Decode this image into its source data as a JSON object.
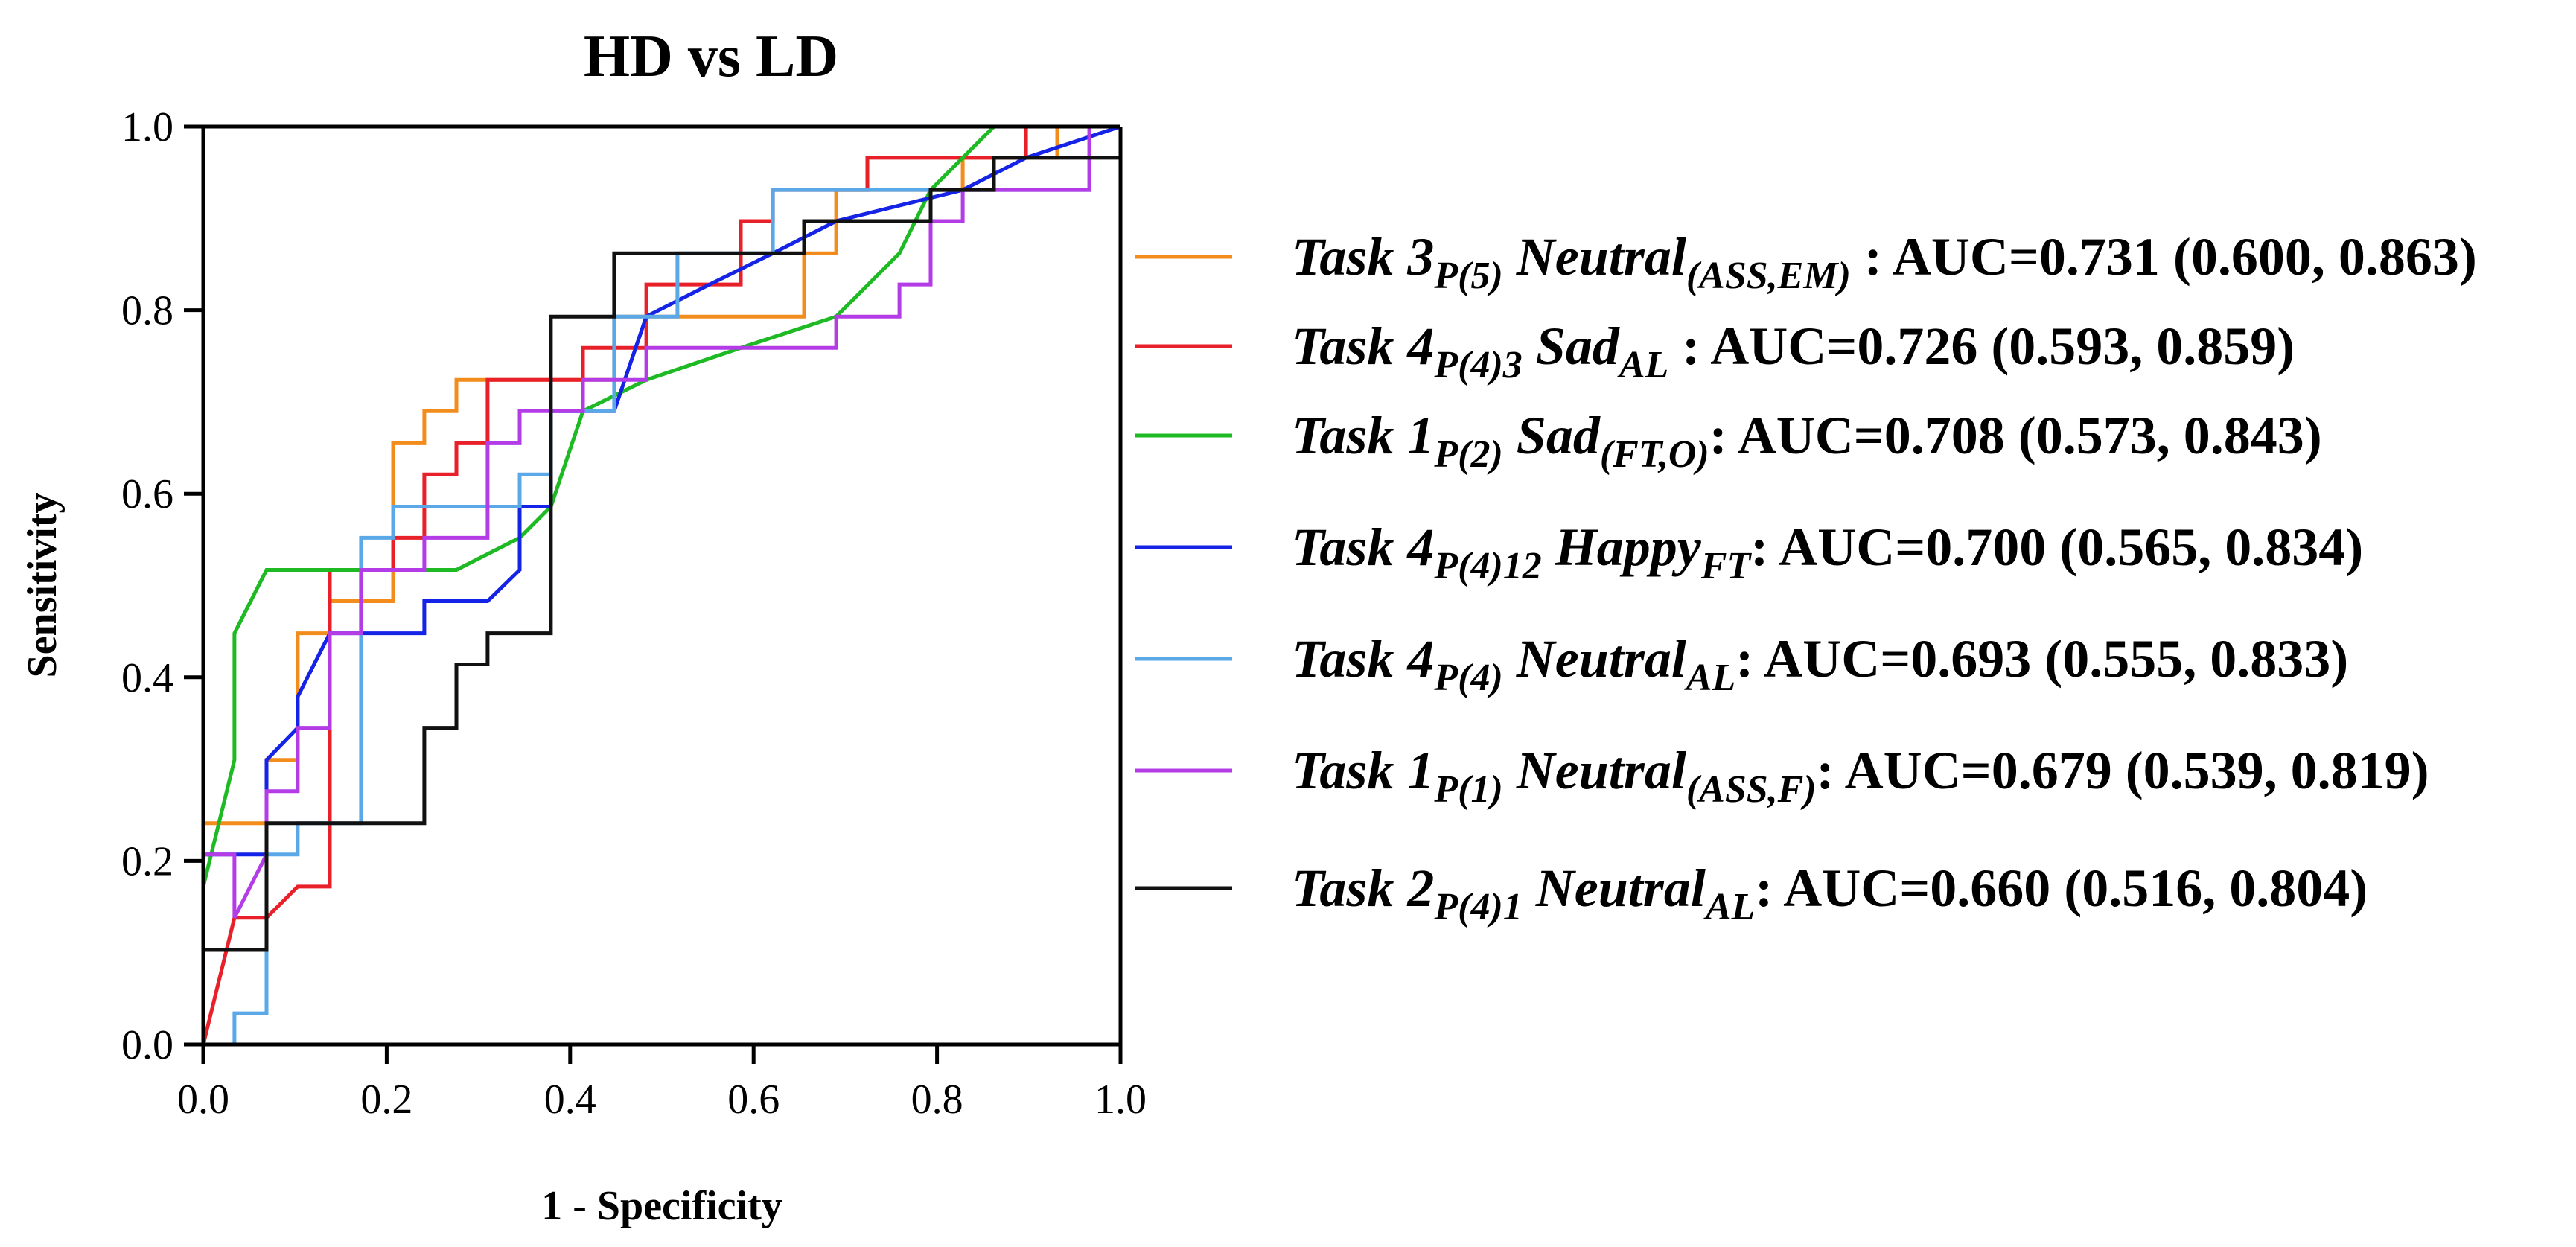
{
  "chart_data": {
    "type": "line",
    "title": "HD vs LD",
    "xlabel": "1 - Specificity",
    "ylabel": "Sensitivity",
    "xlim": [
      0,
      1
    ],
    "ylim": [
      0,
      1
    ],
    "xticks": [
      "0.0",
      "0.2",
      "0.4",
      "0.6",
      "0.8",
      "1.0"
    ],
    "yticks": [
      "0.0",
      "0.2",
      "0.4",
      "0.6",
      "0.8",
      "1.0"
    ],
    "legend_position": "right",
    "series": [
      {
        "name": "Task 3 P(5) Neutral(ASS,EM) : AUC=0.731 (0.600, 0.863)",
        "legend": {
          "task": "Task 3",
          "sub1": "P(5)",
          "cond": "Neutral",
          "sub2": "(ASS,EM)",
          "auc": " : AUC=0.731 (0.600, 0.863)"
        },
        "color": "#F28C1C",
        "points": [
          [
            0,
            0.241
          ],
          [
            0.069,
            0.241
          ],
          [
            0.069,
            0.31
          ],
          [
            0.103,
            0.31
          ],
          [
            0.103,
            0.448
          ],
          [
            0.138,
            0.448
          ],
          [
            0.138,
            0.483
          ],
          [
            0.207,
            0.483
          ],
          [
            0.207,
            0.655
          ],
          [
            0.241,
            0.655
          ],
          [
            0.241,
            0.69
          ],
          [
            0.276,
            0.69
          ],
          [
            0.276,
            0.724
          ],
          [
            0.31,
            0.724
          ],
          [
            0.448,
            0.724
          ],
          [
            0.448,
            0.793
          ],
          [
            0.655,
            0.793
          ],
          [
            0.655,
            0.862
          ],
          [
            0.69,
            0.862
          ],
          [
            0.69,
            0.931
          ],
          [
            0.793,
            0.931
          ],
          [
            0.828,
            0.931
          ],
          [
            0.828,
            0.966
          ],
          [
            0.931,
            0.966
          ],
          [
            0.931,
            1.0
          ],
          [
            1.0,
            1.0
          ]
        ]
      },
      {
        "name": "Task 4 P(4)3 Sad AL : AUC=0.726 (0.593, 0.859)",
        "legend": {
          "task": "Task 4",
          "sub1": "P(4)3",
          "cond": "Sad",
          "sub2": "AL",
          "auc": " : AUC=0.726 (0.593, 0.859)"
        },
        "color": "#E8202A",
        "points": [
          [
            0,
            0
          ],
          [
            0.034,
            0.138
          ],
          [
            0.069,
            0.138
          ],
          [
            0.103,
            0.172
          ],
          [
            0.138,
            0.172
          ],
          [
            0.138,
            0.517
          ],
          [
            0.207,
            0.517
          ],
          [
            0.207,
            0.552
          ],
          [
            0.241,
            0.552
          ],
          [
            0.241,
            0.621
          ],
          [
            0.276,
            0.621
          ],
          [
            0.276,
            0.655
          ],
          [
            0.31,
            0.655
          ],
          [
            0.31,
            0.724
          ],
          [
            0.414,
            0.724
          ],
          [
            0.414,
            0.759
          ],
          [
            0.483,
            0.759
          ],
          [
            0.483,
            0.828
          ],
          [
            0.586,
            0.828
          ],
          [
            0.586,
            0.897
          ],
          [
            0.621,
            0.897
          ],
          [
            0.621,
            0.931
          ],
          [
            0.724,
            0.931
          ],
          [
            0.724,
            0.966
          ],
          [
            0.897,
            0.966
          ],
          [
            0.897,
            1.0
          ],
          [
            1.0,
            1.0
          ]
        ]
      },
      {
        "name": "Task 1 P(2) Sad(FT,O): AUC=0.708 (0.573, 0.843)",
        "legend": {
          "task": "Task 1",
          "sub1": "P(2)",
          "cond": "Sad",
          "sub2": "(FT,O)",
          "auc": ": AUC=0.708 (0.573, 0.843)"
        },
        "color": "#1EBA23",
        "points": [
          [
            0,
            0.172
          ],
          [
            0.034,
            0.31
          ],
          [
            0.034,
            0.448
          ],
          [
            0.069,
            0.517
          ],
          [
            0.138,
            0.517
          ],
          [
            0.207,
            0.517
          ],
          [
            0.276,
            0.517
          ],
          [
            0.345,
            0.552
          ],
          [
            0.379,
            0.586
          ],
          [
            0.414,
            0.69
          ],
          [
            0.483,
            0.724
          ],
          [
            0.586,
            0.759
          ],
          [
            0.69,
            0.793
          ],
          [
            0.759,
            0.862
          ],
          [
            0.793,
            0.931
          ],
          [
            0.862,
            1.0
          ],
          [
            1.0,
            1.0
          ]
        ]
      },
      {
        "name": "Task 4 P(4)12 Happy FT: AUC=0.700 (0.565, 0.834)",
        "legend": {
          "task": "Task 4",
          "sub1": "P(4)12",
          "cond": "Happy",
          "sub2": "FT",
          "auc": ": AUC=0.700 (0.565, 0.834)"
        },
        "color": "#1423E6",
        "points": [
          [
            0,
            0.103
          ],
          [
            0,
            0.207
          ],
          [
            0.069,
            0.207
          ],
          [
            0.069,
            0.31
          ],
          [
            0.103,
            0.345
          ],
          [
            0.103,
            0.379
          ],
          [
            0.138,
            0.448
          ],
          [
            0.241,
            0.448
          ],
          [
            0.241,
            0.483
          ],
          [
            0.31,
            0.483
          ],
          [
            0.345,
            0.517
          ],
          [
            0.345,
            0.586
          ],
          [
            0.379,
            0.586
          ],
          [
            0.379,
            0.69
          ],
          [
            0.448,
            0.69
          ],
          [
            0.483,
            0.793
          ],
          [
            0.552,
            0.828
          ],
          [
            0.621,
            0.862
          ],
          [
            0.69,
            0.897
          ],
          [
            0.828,
            0.931
          ],
          [
            0.897,
            0.966
          ],
          [
            1.0,
            1.0
          ]
        ]
      },
      {
        "name": "Task 4 P(4) Neutral AL: AUC=0.693 (0.555, 0.833)",
        "legend": {
          "task": "Task 4",
          "sub1": "P(4)",
          "cond": "Neutral",
          "sub2": "AL",
          "auc": ": AUC=0.693 (0.555, 0.833)"
        },
        "color": "#5AA8E8",
        "points": [
          [
            0,
            0
          ],
          [
            0.034,
            0
          ],
          [
            0.034,
            0.034
          ],
          [
            0.069,
            0.034
          ],
          [
            0.069,
            0.207
          ],
          [
            0.103,
            0.207
          ],
          [
            0.103,
            0.241
          ],
          [
            0.172,
            0.241
          ],
          [
            0.172,
            0.552
          ],
          [
            0.207,
            0.552
          ],
          [
            0.207,
            0.586
          ],
          [
            0.345,
            0.586
          ],
          [
            0.345,
            0.621
          ],
          [
            0.379,
            0.621
          ],
          [
            0.379,
            0.655
          ],
          [
            0.379,
            0.69
          ],
          [
            0.448,
            0.69
          ],
          [
            0.448,
            0.793
          ],
          [
            0.517,
            0.793
          ],
          [
            0.517,
            0.862
          ],
          [
            0.621,
            0.862
          ],
          [
            0.621,
            0.931
          ],
          [
            0.966,
            0.931
          ],
          [
            0.966,
            1.0
          ],
          [
            1.0,
            1.0
          ]
        ]
      },
      {
        "name": "Task 1 P(1) Neutral(ASS,F): AUC=0.679 (0.539, 0.819)",
        "legend": {
          "task": "Task 1",
          "sub1": "P(1)",
          "cond": "Neutral",
          "sub2": "(ASS,F)",
          "auc": ": AUC=0.679 (0.539, 0.819)"
        },
        "color": "#B33CE6",
        "points": [
          [
            0,
            0.207
          ],
          [
            0.034,
            0.207
          ],
          [
            0.034,
            0.138
          ],
          [
            0.069,
            0.207
          ],
          [
            0.069,
            0.276
          ],
          [
            0.103,
            0.276
          ],
          [
            0.103,
            0.345
          ],
          [
            0.138,
            0.345
          ],
          [
            0.138,
            0.448
          ],
          [
            0.172,
            0.448
          ],
          [
            0.172,
            0.517
          ],
          [
            0.241,
            0.517
          ],
          [
            0.241,
            0.552
          ],
          [
            0.31,
            0.552
          ],
          [
            0.31,
            0.655
          ],
          [
            0.345,
            0.655
          ],
          [
            0.345,
            0.69
          ],
          [
            0.379,
            0.69
          ],
          [
            0.414,
            0.69
          ],
          [
            0.414,
            0.724
          ],
          [
            0.483,
            0.724
          ],
          [
            0.483,
            0.759
          ],
          [
            0.69,
            0.759
          ],
          [
            0.69,
            0.793
          ],
          [
            0.759,
            0.793
          ],
          [
            0.759,
            0.828
          ],
          [
            0.793,
            0.828
          ],
          [
            0.793,
            0.897
          ],
          [
            0.828,
            0.897
          ],
          [
            0.828,
            0.931
          ],
          [
            0.966,
            0.931
          ],
          [
            0.966,
            1.0
          ],
          [
            1.0,
            1.0
          ]
        ]
      },
      {
        "name": "Task 2 P(4)1 Neutral AL: AUC=0.660 (0.516, 0.804)",
        "legend": {
          "task": "Task 2",
          "sub1": "P(4)1",
          "cond": "Neutral",
          "sub2": "AL",
          "auc": ": AUC=0.660 (0.516, 0.804)"
        },
        "color": "#111111",
        "points": [
          [
            0,
            0.103
          ],
          [
            0.069,
            0.103
          ],
          [
            0.069,
            0.241
          ],
          [
            0.241,
            0.241
          ],
          [
            0.241,
            0.345
          ],
          [
            0.276,
            0.345
          ],
          [
            0.276,
            0.414
          ],
          [
            0.31,
            0.414
          ],
          [
            0.31,
            0.448
          ],
          [
            0.379,
            0.448
          ],
          [
            0.379,
            0.793
          ],
          [
            0.448,
            0.793
          ],
          [
            0.448,
            0.862
          ],
          [
            0.655,
            0.862
          ],
          [
            0.655,
            0.897
          ],
          [
            0.793,
            0.897
          ],
          [
            0.793,
            0.931
          ],
          [
            0.862,
            0.931
          ],
          [
            0.862,
            0.966
          ],
          [
            1.0,
            0.966
          ]
        ]
      }
    ]
  }
}
